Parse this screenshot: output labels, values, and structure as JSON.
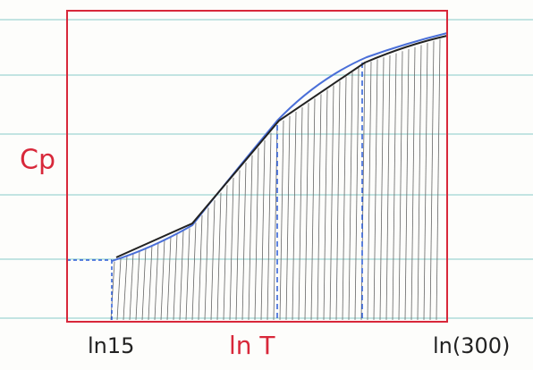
{
  "labels": {
    "y_axis": "Cp",
    "x_axis": "ln T",
    "x_start": "ln15",
    "x_end": "ln(300)"
  }
}
